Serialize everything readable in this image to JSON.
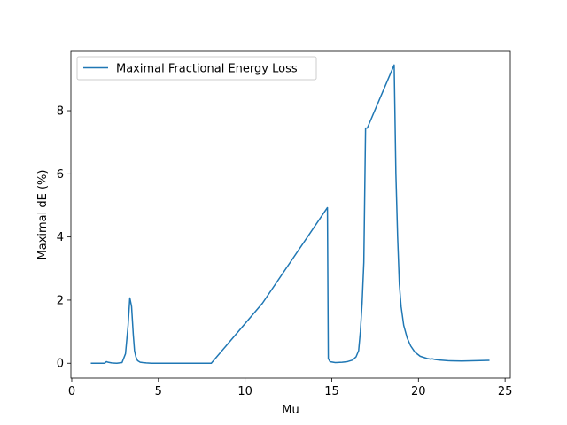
{
  "chart_data": {
    "type": "line",
    "xlabel": "Mu",
    "ylabel": "Maximal dE (%)",
    "xlim": [
      -0.05,
      25.3
    ],
    "ylim": [
      -0.47,
      9.88
    ],
    "xticks": [
      0,
      5,
      10,
      15,
      20,
      25
    ],
    "yticks": [
      0,
      2,
      4,
      6,
      8
    ],
    "xtick_labels": [
      "0",
      "5",
      "10",
      "15",
      "20",
      "25"
    ],
    "ytick_labels": [
      "0",
      "2",
      "4",
      "6",
      "8"
    ],
    "legend_position": "upper-left",
    "grid": false,
    "series_color": "#1f77b4",
    "series": [
      {
        "name": "Maximal Fractional Energy Loss",
        "x": [
          1.1,
          1.5,
          1.9,
          2.0,
          2.1,
          2.3,
          2.6,
          2.9,
          3.1,
          3.25,
          3.35,
          3.45,
          3.55,
          3.62,
          3.7,
          3.8,
          3.95,
          4.1,
          4.3,
          4.6,
          5.0,
          5.5,
          6.5,
          8.05,
          11.0,
          14.75,
          14.8,
          14.9,
          15.2,
          15.6,
          15.9,
          16.2,
          16.4,
          16.55,
          16.65,
          16.75,
          16.85,
          16.95,
          17.05,
          18.6,
          18.7,
          18.8,
          18.9,
          19.0,
          19.15,
          19.35,
          19.55,
          19.8,
          20.1,
          20.5,
          20.7,
          20.8,
          20.95,
          21.2,
          21.7,
          22.5,
          23.3,
          24.1
        ],
        "y": [
          0.0,
          0.0,
          0.0,
          0.05,
          0.03,
          0.01,
          0.0,
          0.02,
          0.3,
          1.2,
          2.07,
          1.8,
          0.9,
          0.4,
          0.2,
          0.08,
          0.03,
          0.02,
          0.01,
          0.0,
          0.0,
          0.0,
          0.0,
          0.0,
          1.9,
          4.93,
          0.15,
          0.05,
          0.02,
          0.03,
          0.05,
          0.1,
          0.2,
          0.4,
          1.0,
          1.9,
          3.2,
          7.45,
          7.45,
          9.45,
          6.0,
          4.0,
          2.5,
          1.8,
          1.2,
          0.8,
          0.55,
          0.35,
          0.22,
          0.15,
          0.13,
          0.14,
          0.12,
          0.1,
          0.08,
          0.07,
          0.08,
          0.09
        ]
      }
    ]
  }
}
